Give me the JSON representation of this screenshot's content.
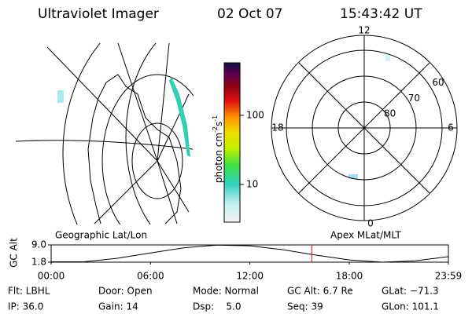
{
  "header": {
    "instrument": "Ultraviolet Imager",
    "date": "02 Oct 07",
    "time": "15:43:42 UT"
  },
  "colorbar": {
    "unit_parts": [
      "photon cm",
      "-2",
      "s",
      "-1"
    ],
    "log": true,
    "range": [
      2.85,
      575
    ],
    "ticks": [
      10,
      100
    ]
  },
  "left_map": {
    "label": "Geographic Lat/Lon"
  },
  "right_map": {
    "label": "Apex MLat/MLT",
    "mlat_circles": [
      80,
      70,
      60
    ],
    "mlt_labels": [
      "12",
      "18",
      "6",
      "0"
    ]
  },
  "altitude": {
    "axis_label": "GC Alt",
    "ylim": [
      1.8,
      9.0
    ],
    "yticks": [
      {
        "value": 9.0,
        "label": "9.0"
      },
      {
        "value": 1.8,
        "label": "1.8"
      }
    ],
    "xlim": [
      0,
      23.983
    ],
    "xticks": [
      {
        "value": 0,
        "label": "00:00"
      },
      {
        "value": 6,
        "label": "06:00"
      },
      {
        "value": 12,
        "label": "12:00"
      },
      {
        "value": 18,
        "label": "18:00"
      },
      {
        "value": 23.983,
        "label": "23:59"
      }
    ],
    "hours": [
      0,
      2,
      4,
      6,
      8,
      10,
      12,
      14,
      16,
      18,
      20,
      22,
      24
    ],
    "values": [
      1.97,
      2.0,
      3.43,
      5.66,
      7.78,
      8.93,
      8.63,
      7.01,
      4.73,
      2.74,
      1.81,
      2.38,
      4.15
    ],
    "current_hour": 15.73,
    "current_color": "#e00000"
  },
  "info": {
    "rows": [
      [
        "Flt: LBHL",
        "Door: Open",
        "Mode: Normal",
        "GC Alt: 6.7 Re",
        "GLat: −71.3"
      ],
      [
        "IP: 36.0",
        "Gain: 14",
        "Dsp:    5.0",
        "Seq: 39",
        "GLon: 101.1"
      ]
    ]
  }
}
